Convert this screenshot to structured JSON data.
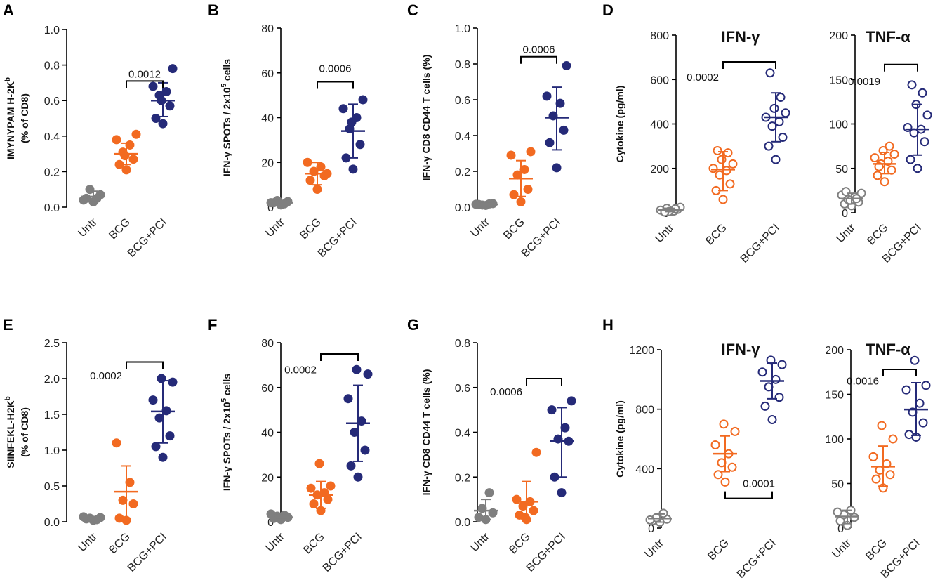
{
  "colors": {
    "untr": "#7f7f7f",
    "bcg": "#f26a21",
    "bcgpci": "#252a78"
  },
  "chart_data": [
    {
      "id": "A",
      "type": "scatter",
      "panel_letter": "A",
      "subtitle": "",
      "ylabel_line1": "IMYNYPAM H-2K",
      "ylabel_sup": "b",
      "ylabel_line2": "(% of CD8)",
      "ylim": [
        0,
        1.0
      ],
      "yticks": [
        "0.0",
        "0.2",
        "0.4",
        "0.6",
        "0.8",
        "1.0"
      ],
      "categories": [
        "Untr",
        "BCG",
        "BCG+PCI"
      ],
      "filled": true,
      "series": [
        {
          "name": "Untr",
          "points": [
            0.03,
            0.05,
            0.07,
            0.1,
            0.05,
            0.04
          ],
          "mean": 0.06,
          "sd_low": 0.03,
          "sd_high": 0.09
        },
        {
          "name": "BCG",
          "points": [
            0.21,
            0.24,
            0.27,
            0.31,
            0.35,
            0.38,
            0.41,
            0.29
          ],
          "mean": 0.3,
          "sd_low": 0.24,
          "sd_high": 0.36
        },
        {
          "name": "BCG+PCI",
          "points": [
            0.47,
            0.5,
            0.57,
            0.63,
            0.65,
            0.68,
            0.78,
            0.6
          ],
          "mean": 0.6,
          "sd_low": 0.51,
          "sd_high": 0.7
        }
      ],
      "comparison": {
        "label": "0.0012",
        "from": 1,
        "to": 2,
        "y": 0.71,
        "label_y": 0.75,
        "bracket_side": "above",
        "label_x": "center"
      }
    },
    {
      "id": "B",
      "type": "scatter",
      "panel_letter": "B",
      "subtitle": "",
      "ylabel_line1": "IFN-γ SPOTs / 2x10",
      "ylabel_sup": "5",
      "ylabel_line1_tail": " cells",
      "ylabel_line2": "",
      "ylim": [
        0,
        80
      ],
      "yticks": [
        "0",
        "20",
        "40",
        "60",
        "80"
      ],
      "categories": [
        "Untr",
        "BCG",
        "BCG+PCI"
      ],
      "filled": true,
      "series": [
        {
          "name": "Untr",
          "points": [
            1,
            2,
            2.5,
            3,
            1.5,
            2
          ],
          "mean": 2,
          "sd_low": 1,
          "sd_high": 3
        },
        {
          "name": "BCG",
          "points": [
            8,
            12,
            14,
            16,
            18,
            20,
            15
          ],
          "mean": 15,
          "sd_low": 10,
          "sd_high": 20
        },
        {
          "name": "BCG+PCI",
          "points": [
            17,
            22,
            28,
            35,
            40,
            44,
            48,
            38
          ],
          "mean": 34,
          "sd_low": 22,
          "sd_high": 46
        }
      ],
      "comparison": {
        "label": "0.0006",
        "from": 1,
        "to": 2,
        "y": 56,
        "label_y": 62,
        "bracket_side": "above",
        "label_x": "center"
      }
    },
    {
      "id": "C",
      "type": "scatter",
      "panel_letter": "C",
      "subtitle": "",
      "ylabel_line1": "IFN-γ CD8 CD44 T cells (%)",
      "ylabel_sup": "",
      "ylabel_line2": "",
      "ylim": [
        0,
        1.0
      ],
      "yticks": [
        "0.0",
        "0.2",
        "0.4",
        "0.6",
        "0.8",
        "1.0"
      ],
      "categories": [
        "Untr",
        "BCG",
        "BCG+PCI"
      ],
      "filled": true,
      "series": [
        {
          "name": "Untr",
          "points": [
            0.01,
            0.015,
            0.02,
            0.012,
            0.018,
            0.016
          ],
          "mean": 0.015,
          "sd_low": 0.01,
          "sd_high": 0.02
        },
        {
          "name": "BCG",
          "points": [
            0.03,
            0.07,
            0.1,
            0.18,
            0.21,
            0.29,
            0.31
          ],
          "mean": 0.16,
          "sd_low": 0.06,
          "sd_high": 0.26
        },
        {
          "name": "BCG+PCI",
          "points": [
            0.22,
            0.36,
            0.43,
            0.51,
            0.58,
            0.62,
            0.79
          ],
          "mean": 0.5,
          "sd_low": 0.32,
          "sd_high": 0.67
        }
      ],
      "comparison": {
        "label": "0.0006",
        "from": 1,
        "to": 2,
        "y": 0.84,
        "label_y": 0.88,
        "bracket_side": "above",
        "label_x": "center"
      }
    },
    {
      "id": "D1",
      "type": "scatter",
      "panel_letter": "D",
      "subtitle": "IFN-γ",
      "ylabel_line1": "Cytokine (pg/ml)",
      "ylabel_sup": "",
      "ylabel_line2": "",
      "ylim": [
        0,
        800
      ],
      "yticks": [
        "0",
        "200",
        "400",
        "600",
        "800"
      ],
      "categories": [
        "Untr",
        "BCG",
        "BCG+PCI"
      ],
      "filled": false,
      "series": [
        {
          "name": "Untr",
          "points": [
            5,
            10,
            15,
            20,
            8,
            12,
            25,
            6,
            18,
            3
          ],
          "mean": 12,
          "sd_low": 5,
          "sd_high": 20
        },
        {
          "name": "BCG",
          "points": [
            60,
            100,
            130,
            170,
            190,
            200,
            220,
            240,
            270,
            280
          ],
          "mean": 195,
          "sd_low": 100,
          "sd_high": 275
        },
        {
          "name": "BCG+PCI",
          "points": [
            240,
            300,
            340,
            390,
            410,
            430,
            450,
            470,
            520,
            630
          ],
          "mean": 430,
          "sd_low": 320,
          "sd_high": 540
        }
      ],
      "comparison": {
        "label": "0.0002",
        "from": 1,
        "to": 2,
        "y": 680,
        "label_y": 610,
        "bracket_side": "above",
        "label_x": "left"
      }
    },
    {
      "id": "D2",
      "type": "scatter",
      "panel_letter": "",
      "subtitle": "TNF-α",
      "ylabel_line1": "",
      "ylabel_sup": "",
      "ylabel_line2": "",
      "ylim": [
        0,
        200
      ],
      "yticks": [
        "0",
        "50",
        "100",
        "150",
        "200"
      ],
      "categories": [
        "Untr",
        "BCG",
        "BCG+PCI"
      ],
      "filled": false,
      "series": [
        {
          "name": "Untr",
          "points": [
            8,
            10,
            12,
            15,
            18,
            20,
            22,
            14,
            16,
            24
          ],
          "mean": 16,
          "sd_low": 10,
          "sd_high": 22
        },
        {
          "name": "BCG",
          "points": [
            35,
            42,
            48,
            55,
            58,
            62,
            66,
            70,
            75,
            52
          ],
          "mean": 55,
          "sd_low": 44,
          "sd_high": 68
        },
        {
          "name": "BCG+PCI",
          "points": [
            50,
            60,
            80,
            90,
            94,
            96,
            110,
            122,
            135,
            144
          ],
          "mean": 94,
          "sd_low": 65,
          "sd_high": 122
        }
      ],
      "comparison": {
        "label": "0.0019",
        "from": 1,
        "to": 2,
        "y": 167,
        "label_y": 148,
        "bracket_side": "above",
        "label_x": "left"
      }
    },
    {
      "id": "E",
      "type": "scatter",
      "panel_letter": "E",
      "subtitle": "",
      "ylabel_line1": "SIINFEKL-H2K",
      "ylabel_sup": "b",
      "ylabel_line2": "(% of CD8)",
      "ylim": [
        0,
        2.5
      ],
      "yticks": [
        "0.0",
        "0.5",
        "1.0",
        "1.5",
        "2.0",
        "2.5"
      ],
      "categories": [
        "Untr",
        "BCG",
        "BCG+PCI"
      ],
      "filled": true,
      "series": [
        {
          "name": "Untr",
          "points": [
            0.02,
            0.04,
            0.06,
            0.05,
            0.03,
            0.07
          ],
          "mean": 0.05,
          "sd_low": 0.03,
          "sd_high": 0.07
        },
        {
          "name": "BCG",
          "points": [
            0.02,
            0.05,
            0.25,
            0.3,
            0.55,
            1.1
          ],
          "mean": 0.42,
          "sd_low": 0.05,
          "sd_high": 0.78
        },
        {
          "name": "BCG+PCI",
          "points": [
            0.9,
            1.05,
            1.2,
            1.45,
            1.55,
            1.7,
            1.95,
            2.0
          ],
          "mean": 1.54,
          "sd_low": 1.1,
          "sd_high": 1.97
        }
      ],
      "comparison": {
        "label": "0.0002",
        "from": 1,
        "to": 2,
        "y": 2.23,
        "label_y": 2.04,
        "bracket_side": "above",
        "label_x": "left"
      }
    },
    {
      "id": "F",
      "type": "scatter",
      "panel_letter": "F",
      "subtitle": "",
      "ylabel_line1": "IFN-γ SPOTs / 2x10",
      "ylabel_sup": "5",
      "ylabel_line1_tail": " cells",
      "ylabel_line2": "",
      "ylim": [
        0,
        80
      ],
      "yticks": [
        "0",
        "20",
        "40",
        "60",
        "80"
      ],
      "categories": [
        "Untr",
        "BCG",
        "BCG+PCI"
      ],
      "filled": true,
      "series": [
        {
          "name": "Untr",
          "points": [
            1,
            1.5,
            2,
            2.5,
            3,
            3.5
          ],
          "mean": 2,
          "sd_low": 1,
          "sd_high": 3
        },
        {
          "name": "BCG",
          "points": [
            5,
            8,
            10,
            12,
            13,
            15,
            16,
            26
          ],
          "mean": 12,
          "sd_low": 6,
          "sd_high": 18
        },
        {
          "name": "BCG+PCI",
          "points": [
            20,
            25,
            32,
            40,
            45,
            55,
            66,
            68
          ],
          "mean": 44,
          "sd_low": 27,
          "sd_high": 61
        }
      ],
      "comparison": {
        "label": "0.0002",
        "from": 1,
        "to": 2,
        "y": 75,
        "label_y": 68,
        "bracket_side": "above",
        "label_x": "left"
      }
    },
    {
      "id": "G",
      "type": "scatter",
      "panel_letter": "G",
      "subtitle": "",
      "ylabel_line1": "IFN-γ CD8 CD44 T cells (%)",
      "ylabel_sup": "",
      "ylabel_line2": "",
      "ylim": [
        0,
        0.8
      ],
      "yticks": [
        "0.0",
        "0.2",
        "0.4",
        "0.6",
        "0.8"
      ],
      "categories": [
        "Untr",
        "BCG",
        "BCG+PCI"
      ],
      "filled": true,
      "series": [
        {
          "name": "Untr",
          "points": [
            0.01,
            0.02,
            0.04,
            0.06,
            0.13
          ],
          "mean": 0.05,
          "sd_low": 0.01,
          "sd_high": 0.1
        },
        {
          "name": "BCG",
          "points": [
            0.01,
            0.03,
            0.05,
            0.07,
            0.09,
            0.1,
            0.31,
            0.02
          ],
          "mean": 0.09,
          "sd_low": 0.01,
          "sd_high": 0.18
        },
        {
          "name": "BCG+PCI",
          "points": [
            0.13,
            0.2,
            0.36,
            0.37,
            0.42,
            0.5,
            0.54
          ],
          "mean": 0.36,
          "sd_low": 0.2,
          "sd_high": 0.51
        }
      ],
      "comparison": {
        "label": "0.0006",
        "from": 1,
        "to": 2,
        "y": 0.64,
        "label_y": 0.58,
        "bracket_side": "above",
        "label_x": "left"
      }
    },
    {
      "id": "H1",
      "type": "scatter",
      "panel_letter": "H",
      "subtitle": "IFN-γ",
      "ylabel_line1": "Cytokine (pg/ml)",
      "ylabel_sup": "",
      "ylabel_line2": "",
      "ylim": [
        0,
        1200
      ],
      "yticks": [
        "0",
        "400",
        "800",
        "1200"
      ],
      "categories": [
        "Untr",
        "BCG",
        "BCG+PCI"
      ],
      "filled": false,
      "series": [
        {
          "name": "Untr",
          "points": [
            40,
            50,
            60,
            70,
            100,
            55
          ],
          "mean": 65,
          "sd_low": 40,
          "sd_high": 95
        },
        {
          "name": "BCG",
          "points": [
            310,
            360,
            410,
            440,
            500,
            560,
            650,
            700
          ],
          "mean": 500,
          "sd_low": 380,
          "sd_high": 620
        },
        {
          "name": "BCG+PCI",
          "points": [
            730,
            820,
            880,
            950,
            1000,
            1050,
            1100,
            1130
          ],
          "mean": 990,
          "sd_low": 870,
          "sd_high": 1110
        }
      ],
      "comparison": {
        "label": "0.0001",
        "from": 1,
        "to": 2,
        "y": 200,
        "label_y": 300,
        "bracket_side": "below",
        "label_x": "right"
      }
    },
    {
      "id": "H2",
      "type": "scatter",
      "panel_letter": "",
      "subtitle": "TNF-α",
      "ylabel_line1": "",
      "ylabel_sup": "",
      "ylabel_line2": "",
      "ylim": [
        0,
        200
      ],
      "yticks": [
        "0",
        "50",
        "100",
        "150",
        "200"
      ],
      "categories": [
        "Untr",
        "BCG",
        "BCG+PCI"
      ],
      "filled": false,
      "series": [
        {
          "name": "Untr",
          "points": [
            3,
            8,
            12,
            15,
            20,
            18
          ],
          "mean": 13,
          "sd_low": 5,
          "sd_high": 20
        },
        {
          "name": "BCG",
          "points": [
            45,
            55,
            60,
            65,
            72,
            80,
            100,
            115
          ],
          "mean": 69,
          "sd_low": 47,
          "sd_high": 92
        },
        {
          "name": "BCG+PCI",
          "points": [
            102,
            105,
            118,
            130,
            140,
            155,
            160,
            188
          ],
          "mean": 133,
          "sd_low": 104,
          "sd_high": 163
        }
      ],
      "comparison": {
        "label": "0.0016",
        "from": 1,
        "to": 2,
        "y": 178,
        "label_y": 165,
        "bracket_side": "above",
        "label_x": "left"
      }
    }
  ]
}
